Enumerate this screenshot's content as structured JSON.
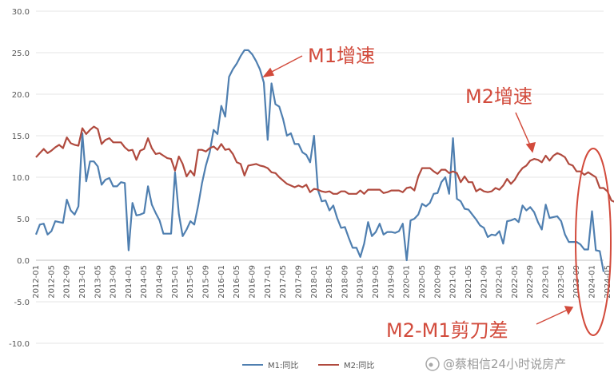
{
  "chart_data": {
    "type": "line",
    "title": "",
    "xlabel": "",
    "ylabel": "",
    "ylim": [
      -10,
      30
    ],
    "yticks": [
      "-10.0",
      "-5.0",
      "0.0",
      "5.0",
      "10.0",
      "15.0",
      "20.0",
      "25.0",
      "30.0"
    ],
    "xticks": [
      "2012-01",
      "2012-05",
      "2012-09",
      "2013-01",
      "2013-05",
      "2013-09",
      "2014-01",
      "2014-05",
      "2014-09",
      "2015-01",
      "2015-05",
      "2015-09",
      "2016-01",
      "2016-05",
      "2016-09",
      "2017-01",
      "2017-05",
      "2017-09",
      "2018-01",
      "2018-05",
      "2018-09",
      "2019-01",
      "2019-05",
      "2019-09",
      "2020-01",
      "2020-05",
      "2020-09",
      "2021-01",
      "2021-05",
      "2021-09",
      "2022-01",
      "2022-05",
      "2022-09",
      "2023-01",
      "2023-05",
      "2023-09",
      "2024-01",
      "2024-05"
    ],
    "grid": "horizontal",
    "legend_position": "bottom",
    "series": [
      {
        "name": "M1:同比",
        "color": "#4f7fb0",
        "values": [
          3.1,
          4.3,
          4.4,
          3.1,
          3.5,
          4.7,
          4.6,
          4.5,
          7.3,
          6.0,
          5.5,
          6.5,
          15.3,
          9.5,
          11.9,
          11.9,
          11.3,
          9.1,
          9.7,
          9.9,
          8.9,
          8.9,
          9.4,
          9.3,
          1.2,
          6.9,
          5.4,
          5.5,
          5.7,
          8.9,
          6.7,
          5.7,
          4.8,
          3.2,
          3.2,
          3.2,
          10.6,
          5.6,
          2.9,
          3.7,
          4.7,
          4.3,
          6.6,
          9.3,
          11.4,
          13.0,
          15.7,
          15.2,
          18.6,
          17.3,
          22.1,
          23.0,
          23.7,
          24.6,
          25.3,
          25.3,
          24.8,
          24.0,
          23.0,
          21.4,
          14.5,
          21.3,
          18.8,
          18.5,
          17.0,
          15.0,
          15.3,
          14.0,
          14.0,
          13.0,
          12.7,
          11.8,
          15.0,
          8.5,
          7.1,
          7.2,
          6.0,
          6.6,
          5.1,
          3.9,
          4.0,
          2.7,
          1.5,
          1.5,
          0.4,
          2.0,
          4.6,
          2.9,
          3.4,
          4.4,
          3.1,
          3.4,
          3.4,
          3.3,
          3.5,
          4.4,
          0.0,
          4.8,
          5.0,
          5.5,
          6.8,
          6.5,
          6.9,
          8.0,
          8.1,
          9.4,
          10.0,
          8.0,
          14.7,
          7.4,
          7.1,
          6.2,
          6.1,
          5.5,
          4.9,
          4.2,
          3.9,
          2.8,
          3.1,
          3.0,
          3.5,
          2.0,
          4.7,
          4.8,
          5.0,
          4.6,
          6.6,
          6.0,
          6.4,
          5.8,
          4.6,
          3.7,
          6.7,
          5.1,
          5.2,
          5.3,
          4.7,
          3.1,
          2.2,
          2.2,
          2.2,
          1.9,
          1.3,
          1.3,
          5.9,
          1.2,
          1.1,
          -1.4
        ]
      },
      {
        "name": "M2:同比",
        "color": "#b04a3e",
        "values": [
          12.4,
          12.9,
          13.4,
          12.9,
          13.2,
          13.6,
          13.9,
          13.5,
          14.8,
          14.1,
          13.9,
          13.8,
          15.9,
          15.2,
          15.7,
          16.1,
          15.8,
          14.0,
          14.5,
          14.7,
          14.2,
          14.2,
          14.2,
          13.6,
          13.2,
          13.3,
          12.1,
          13.2,
          13.4,
          14.7,
          13.5,
          12.8,
          12.9,
          12.6,
          12.3,
          12.2,
          10.8,
          12.5,
          11.6,
          10.1,
          10.8,
          10.2,
          13.3,
          13.3,
          13.1,
          13.5,
          13.7,
          13.3,
          14.0,
          13.3,
          13.4,
          12.8,
          11.8,
          11.6,
          10.2,
          11.4,
          11.5,
          11.6,
          11.4,
          11.3,
          11.1,
          10.6,
          10.5,
          10.0,
          9.6,
          9.2,
          9.0,
          8.8,
          9.0,
          8.8,
          9.1,
          8.2,
          8.6,
          8.5,
          8.3,
          8.2,
          8.3,
          8.0,
          8.0,
          8.3,
          8.3,
          8.0,
          8.0,
          8.0,
          8.4,
          8.0,
          8.5,
          8.5,
          8.5,
          8.5,
          8.1,
          8.2,
          8.4,
          8.4,
          8.4,
          8.2,
          8.7,
          8.8,
          8.4,
          10.1,
          11.1,
          11.1,
          11.1,
          10.7,
          10.4,
          10.9,
          10.9,
          10.5,
          10.7,
          10.5,
          9.4,
          10.1,
          9.4,
          9.4,
          8.3,
          8.6,
          8.3,
          8.2,
          8.3,
          8.7,
          8.5,
          9.0,
          9.8,
          9.2,
          9.7,
          10.5,
          11.1,
          11.4,
          12.0,
          12.2,
          12.1,
          11.8,
          12.6,
          12.0,
          12.6,
          12.9,
          12.7,
          12.4,
          11.6,
          11.4,
          10.7,
          10.7,
          10.3,
          10.6,
          10.3,
          10.0,
          8.7,
          8.7,
          8.3,
          7.2,
          7.0
        ]
      }
    ],
    "annotations": {
      "m1_label": "M1增速",
      "m2_label": "M2增速",
      "gap_label": "M2-M1剪刀差"
    }
  },
  "watermark": {
    "text": "@蔡相信24小时说房产"
  }
}
